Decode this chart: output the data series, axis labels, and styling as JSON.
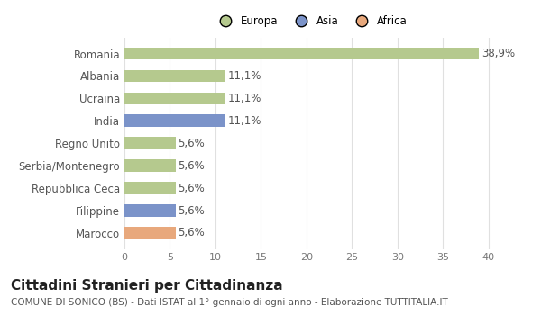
{
  "categories": [
    "Marocco",
    "Filippine",
    "Repubblica Ceca",
    "Serbia/Montenegro",
    "Regno Unito",
    "India",
    "Ucraina",
    "Albania",
    "Romania"
  ],
  "values": [
    5.6,
    5.6,
    5.6,
    5.6,
    5.6,
    11.1,
    11.1,
    11.1,
    38.9
  ],
  "colors": [
    "#e8a87c",
    "#7b93c9",
    "#b5c98e",
    "#b5c98e",
    "#b5c98e",
    "#7b93c9",
    "#b5c98e",
    "#b5c98e",
    "#b5c98e"
  ],
  "labels": [
    "5,6%",
    "5,6%",
    "5,6%",
    "5,6%",
    "5,6%",
    "11,1%",
    "11,1%",
    "11,1%",
    "38,9%"
  ],
  "legend": [
    {
      "label": "Europa",
      "color": "#b5c98e"
    },
    {
      "label": "Asia",
      "color": "#7b93c9"
    },
    {
      "label": "Africa",
      "color": "#e8a87c"
    }
  ],
  "xlim": [
    0,
    41
  ],
  "xticks": [
    0,
    5,
    10,
    15,
    20,
    25,
    30,
    35,
    40
  ],
  "title": "Cittadini Stranieri per Cittadinanza",
  "subtitle": "COMUNE DI SONICO (BS) - Dati ISTAT al 1° gennaio di ogni anno - Elaborazione TUTTITALIA.IT",
  "background_color": "#ffffff",
  "plot_bg_color": "#ffffff",
  "grid_color": "#e0e0e0",
  "bar_height": 0.55,
  "label_fontsize": 8.5,
  "tick_fontsize": 8,
  "title_fontsize": 11,
  "subtitle_fontsize": 7.5
}
